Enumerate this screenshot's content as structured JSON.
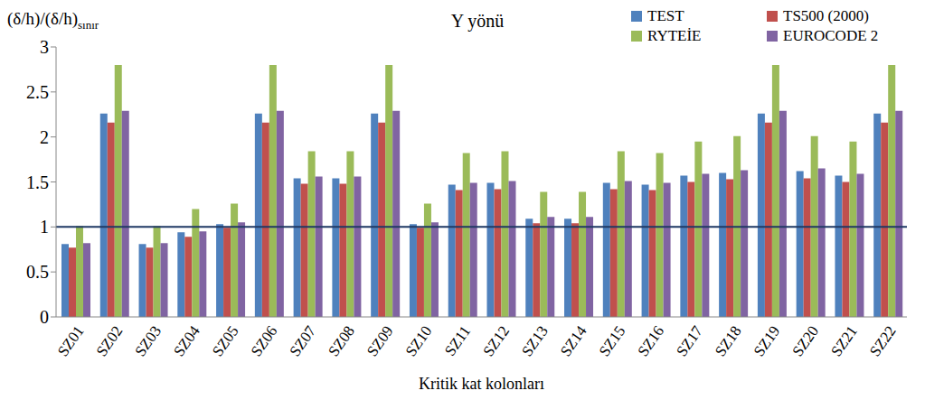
{
  "chart_data": {
    "type": "bar",
    "title": "Y yönü",
    "x_label": "Kritik kat kolonları",
    "y_label": "(δ/h)/(δ/h)",
    "y_label_subscript": "sınır",
    "categories": [
      "SZ01",
      "SZ02",
      "SZ03",
      "SZ04",
      "SZ05",
      "SZ06",
      "SZ07",
      "SZ08",
      "SZ09",
      "SZ10",
      "SZ11",
      "SZ12",
      "SZ13",
      "SZ14",
      "SZ15",
      "SZ16",
      "SZ17",
      "SZ18",
      "SZ19",
      "SZ20",
      "SZ21",
      "SZ22"
    ],
    "series": [
      {
        "name": "TEST",
        "color": "#4f81bd",
        "values": [
          0.81,
          2.26,
          0.81,
          0.94,
          1.03,
          2.26,
          1.54,
          1.54,
          2.26,
          1.03,
          1.47,
          1.49,
          1.09,
          1.09,
          1.49,
          1.47,
          1.57,
          1.6,
          2.26,
          1.62,
          1.57,
          2.26
        ]
      },
      {
        "name": "TS500 (2000)",
        "color": "#c0504d",
        "values": [
          0.77,
          2.16,
          0.77,
          0.89,
          0.99,
          2.16,
          1.48,
          1.48,
          2.16,
          0.99,
          1.41,
          1.42,
          1.04,
          1.04,
          1.42,
          1.41,
          1.5,
          1.53,
          2.16,
          1.54,
          1.5,
          2.16
        ]
      },
      {
        "name": "RYTEİE",
        "color": "#9bbb59",
        "values": [
          1.01,
          2.8,
          1.01,
          1.2,
          1.26,
          2.8,
          1.84,
          1.84,
          2.8,
          1.26,
          1.82,
          1.84,
          1.39,
          1.39,
          1.84,
          1.82,
          1.95,
          2.01,
          2.8,
          2.01,
          1.95,
          2.8
        ]
      },
      {
        "name": "EUROCODE 2",
        "color": "#8064a2",
        "values": [
          0.82,
          2.29,
          0.82,
          0.95,
          1.05,
          2.29,
          1.56,
          1.56,
          2.29,
          1.05,
          1.49,
          1.51,
          1.11,
          1.11,
          1.51,
          1.49,
          1.59,
          1.63,
          2.29,
          1.65,
          1.59,
          2.29
        ]
      }
    ],
    "ylim": [
      0,
      3
    ],
    "yticks": [
      0,
      0.5,
      1,
      1.5,
      2,
      2.5,
      3
    ],
    "hline": 1,
    "grid": false,
    "legend": "top-right"
  }
}
